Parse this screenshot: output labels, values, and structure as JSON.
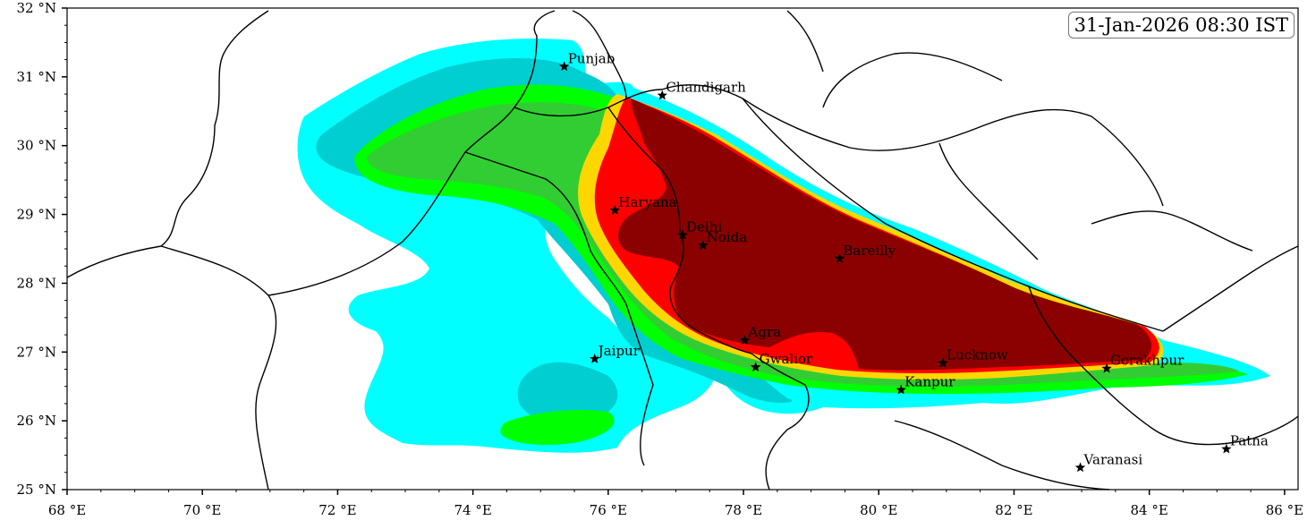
{
  "timestamp": "31-Jan-2026 08:30 IST",
  "colors": {
    "level1": "#00ffff",
    "level2": "#00ced1",
    "level3": "#00ff00",
    "level4": "#32cd32",
    "level5": "#ffd700",
    "level6": "#ff0000",
    "level7": "#8b0000",
    "border": "#000000"
  },
  "axes": {
    "lon_range": [
      68,
      86.2
    ],
    "lat_range": [
      25,
      32
    ],
    "x_ticks": [
      "68 °E",
      "70 °E",
      "72 °E",
      "74 °E",
      "76 °E",
      "78 °E",
      "80 °E",
      "82 °E",
      "84 °E",
      "86 °E"
    ],
    "y_ticks": [
      "32 °N",
      "31 °N",
      "30 °N",
      "29 °N",
      "28 °N",
      "27 °N",
      "26 °N",
      "25 °N"
    ]
  },
  "cities": [
    {
      "name": "Punjab",
      "lon": 75.35,
      "lat": 31.15
    },
    {
      "name": "Chandigarh",
      "lon": 76.8,
      "lat": 30.73
    },
    {
      "name": "Haryana",
      "lon": 76.1,
      "lat": 29.06
    },
    {
      "name": "Delhi",
      "lon": 77.1,
      "lat": 28.7
    },
    {
      "name": "Noida",
      "lon": 77.4,
      "lat": 28.55
    },
    {
      "name": "Bareilly",
      "lon": 79.42,
      "lat": 28.36
    },
    {
      "name": "Jaipur",
      "lon": 75.8,
      "lat": 26.9
    },
    {
      "name": "Agra",
      "lon": 78.02,
      "lat": 27.17
    },
    {
      "name": "Gwalior",
      "lon": 78.18,
      "lat": 26.78
    },
    {
      "name": "Lucknow",
      "lon": 80.95,
      "lat": 26.84
    },
    {
      "name": "Kanpur",
      "lon": 80.33,
      "lat": 26.45
    },
    {
      "name": "Gorakhpur",
      "lon": 83.37,
      "lat": 26.76
    },
    {
      "name": "Varanasi",
      "lon": 82.98,
      "lat": 25.32
    },
    {
      "name": "Patna",
      "lon": 85.14,
      "lat": 25.59
    }
  ]
}
